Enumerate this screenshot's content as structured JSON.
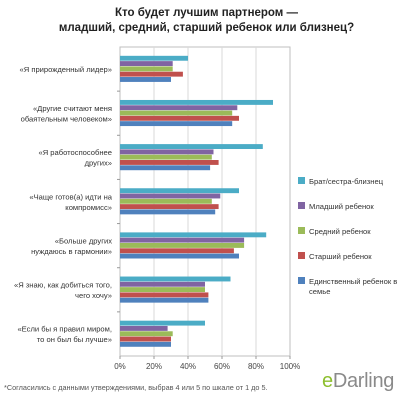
{
  "title_line1": "Кто будет лучшим партнером —",
  "title_line2": "младший, средний, старший ребенок или близнец?",
  "footnote": "*Согласились с данными утверждениями, выбрав 4 или 5 по шкале от 1 до 5.",
  "brand": {
    "prefix": "e",
    "rest": "Darling"
  },
  "chart_data": {
    "type": "bar",
    "orientation": "horizontal",
    "title": "Кто будет лучшим партнером — младший, средний, старший ребенок или близнец?",
    "xlabel": "",
    "ylabel": "",
    "xlim": [
      0,
      100
    ],
    "x_ticks": [
      "0%",
      "20%",
      "40%",
      "60%",
      "80%",
      "100%"
    ],
    "grid": true,
    "legend_position": "right",
    "categories": [
      [
        "«Я прирожденный лидер»"
      ],
      [
        "«Другие считают меня",
        "обаятельным человеком»"
      ],
      [
        "«Я работоспособнее",
        "других»"
      ],
      [
        "«Чаще готов(а) идти на",
        "компромисс»"
      ],
      [
        "«Больше других",
        "нуждаюсь в гармонии»"
      ],
      [
        "«Я знаю, как добиться того,",
        "чего хочу»"
      ],
      [
        "«Если бы я правил миром,",
        "то он был бы лучше»"
      ]
    ],
    "series": [
      {
        "name": "Брат/сестра-близнец",
        "color": "#4bacc6",
        "values": [
          40,
          90,
          84,
          70,
          86,
          65,
          50
        ]
      },
      {
        "name": "Младший ребенок",
        "color": "#8064a2",
        "values": [
          31,
          69,
          55,
          59,
          73,
          50,
          28
        ]
      },
      {
        "name": "Средний ребенок",
        "color": "#9bbb59",
        "values": [
          31,
          66,
          54,
          54,
          73,
          50,
          31
        ]
      },
      {
        "name": "Старший ребенок",
        "color": "#c0504d",
        "values": [
          37,
          70,
          58,
          58,
          67,
          52,
          30
        ]
      },
      {
        "name": "Единственный ребенок в семье",
        "color": "#4f81bd",
        "values": [
          30,
          66,
          53,
          56,
          70,
          52,
          30
        ]
      }
    ]
  }
}
